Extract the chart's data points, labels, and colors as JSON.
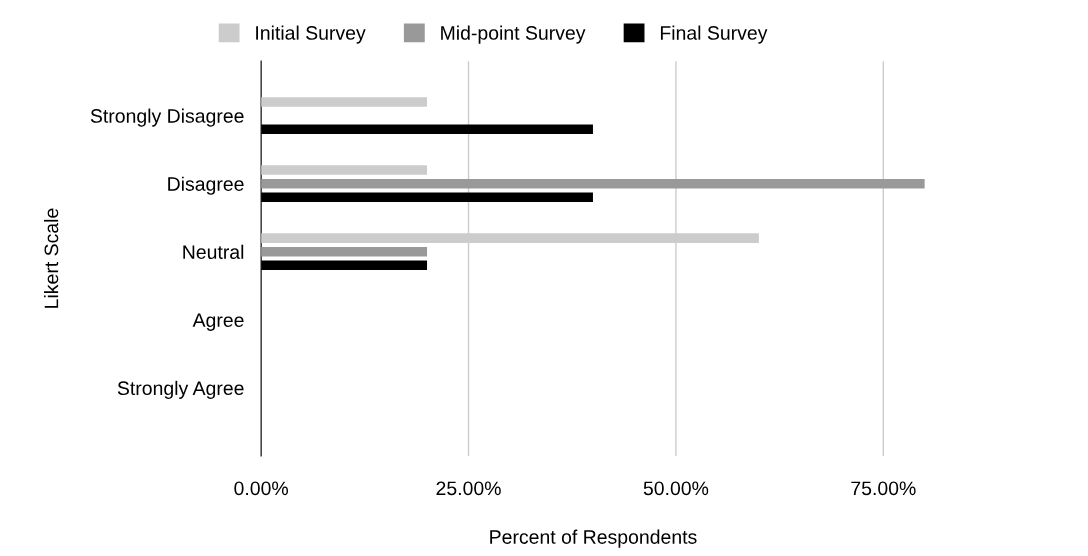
{
  "chart_data": {
    "type": "bar",
    "orientation": "horizontal",
    "xlabel": "Percent of Respondents",
    "ylabel": "Likert Scale",
    "categories": [
      "Strongly Disagree",
      "Disagree",
      "Neutral",
      "Agree",
      "Strongly Agree"
    ],
    "series": [
      {
        "name": "Initial Survey",
        "color": "#cccccc",
        "values": [
          20,
          20,
          60,
          0,
          0
        ]
      },
      {
        "name": "Mid-point Survey",
        "color": "#999999",
        "values": [
          0,
          80,
          20,
          0,
          0
        ]
      },
      {
        "name": "Final Survey",
        "color": "#000000",
        "values": [
          40,
          40,
          20,
          0,
          0
        ]
      }
    ],
    "xlim": [
      0,
      80
    ],
    "xticks": [
      {
        "value": 0,
        "label": "0.00%"
      },
      {
        "value": 25,
        "label": "25.00%"
      },
      {
        "value": 50,
        "label": "50.00%"
      },
      {
        "value": 75,
        "label": "75.00%"
      }
    ],
    "grid": "x",
    "legend": "top"
  }
}
